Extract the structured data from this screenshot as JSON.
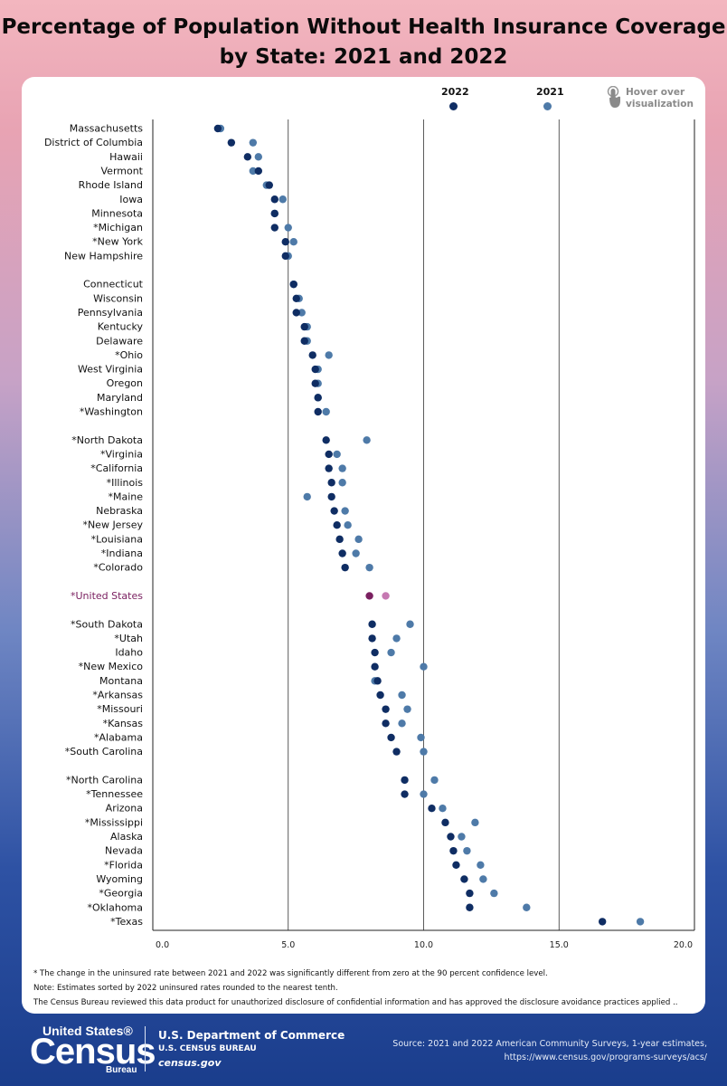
{
  "title_line1": "Percentage of Population Without Health Insurance Coverage",
  "title_line2": "by State: 2021 and 2022",
  "legend": {
    "label_2022": "2022",
    "label_2021": "2021",
    "color_2022": "#0f2d63",
    "color_2021": "#4e7aa8",
    "us_color_2022": "#7a2060",
    "us_color_2021": "#c679b2",
    "hover_line1": "Hover over",
    "hover_line2": "visualization",
    "hover_icon": "hand-pointer-icon"
  },
  "chart_data": {
    "type": "scatter",
    "title": "Percentage of Population Without Health Insurance Coverage by State: 2021 and 2022",
    "xlim": [
      0,
      20
    ],
    "xticks": [
      "0.0",
      "5.0",
      "10.0",
      "15.0",
      "20.0"
    ],
    "grid": "vertical lines at 5, 10, 15",
    "series": [
      {
        "name": "2022",
        "field": "v2022"
      },
      {
        "name": "2021",
        "field": "v2021"
      }
    ],
    "groups": [
      [
        {
          "label": "Massachusetts",
          "v2022": 2.4,
          "v2021": 2.5
        },
        {
          "label": "District of Columbia",
          "v2022": 2.9,
          "v2021": 3.7
        },
        {
          "label": "Hawaii",
          "v2022": 3.5,
          "v2021": 3.9
        },
        {
          "label": "Vermont",
          "v2022": 3.9,
          "v2021": 3.7
        },
        {
          "label": "Rhode Island",
          "v2022": 4.3,
          "v2021": 4.2
        },
        {
          "label": "Iowa",
          "v2022": 4.5,
          "v2021": 4.8
        },
        {
          "label": "Minnesota",
          "v2022": 4.5,
          "v2021": 4.5
        },
        {
          "label": "*Michigan",
          "v2022": 4.5,
          "v2021": 5.0
        },
        {
          "label": "*New York",
          "v2022": 4.9,
          "v2021": 5.2
        },
        {
          "label": "New Hampshire",
          "v2022": 4.9,
          "v2021": 5.0
        }
      ],
      [
        {
          "label": "Connecticut",
          "v2022": 5.2,
          "v2021": 5.2
        },
        {
          "label": "Wisconsin",
          "v2022": 5.3,
          "v2021": 5.4
        },
        {
          "label": "Pennsylvania",
          "v2022": 5.3,
          "v2021": 5.5
        },
        {
          "label": "Kentucky",
          "v2022": 5.6,
          "v2021": 5.7
        },
        {
          "label": "Delaware",
          "v2022": 5.6,
          "v2021": 5.7
        },
        {
          "label": "*Ohio",
          "v2022": 5.9,
          "v2021": 6.5
        },
        {
          "label": "West Virginia",
          "v2022": 6.0,
          "v2021": 6.1
        },
        {
          "label": "Oregon",
          "v2022": 6.0,
          "v2021": 6.1
        },
        {
          "label": "Maryland",
          "v2022": 6.1,
          "v2021": 6.1
        },
        {
          "label": "*Washington",
          "v2022": 6.1,
          "v2021": 6.4
        }
      ],
      [
        {
          "label": "*North Dakota",
          "v2022": 6.4,
          "v2021": 7.9
        },
        {
          "label": "*Virginia",
          "v2022": 6.5,
          "v2021": 6.8
        },
        {
          "label": "*California",
          "v2022": 6.5,
          "v2021": 7.0
        },
        {
          "label": "*Illinois",
          "v2022": 6.6,
          "v2021": 7.0
        },
        {
          "label": "*Maine",
          "v2022": 6.6,
          "v2021": 5.7
        },
        {
          "label": "Nebraska",
          "v2022": 6.7,
          "v2021": 7.1
        },
        {
          "label": "*New Jersey",
          "v2022": 6.8,
          "v2021": 7.2
        },
        {
          "label": "*Louisiana",
          "v2022": 6.9,
          "v2021": 7.6
        },
        {
          "label": "*Indiana",
          "v2022": 7.0,
          "v2021": 7.5
        },
        {
          "label": "*Colorado",
          "v2022": 7.1,
          "v2021": 8.0
        }
      ],
      [
        {
          "label": "*United States",
          "v2022": 8.0,
          "v2021": 8.6,
          "highlight": true
        }
      ],
      [
        {
          "label": "*South Dakota",
          "v2022": 8.1,
          "v2021": 9.5
        },
        {
          "label": "*Utah",
          "v2022": 8.1,
          "v2021": 9.0
        },
        {
          "label": "Idaho",
          "v2022": 8.2,
          "v2021": 8.8
        },
        {
          "label": "*New Mexico",
          "v2022": 8.2,
          "v2021": 10.0
        },
        {
          "label": "Montana",
          "v2022": 8.3,
          "v2021": 8.2
        },
        {
          "label": "*Arkansas",
          "v2022": 8.4,
          "v2021": 9.2
        },
        {
          "label": "*Missouri",
          "v2022": 8.6,
          "v2021": 9.4
        },
        {
          "label": "*Kansas",
          "v2022": 8.6,
          "v2021": 9.2
        },
        {
          "label": "*Alabama",
          "v2022": 8.8,
          "v2021": 9.9
        },
        {
          "label": "*South Carolina",
          "v2022": 9.0,
          "v2021": 10.0
        }
      ],
      [
        {
          "label": "*North Carolina",
          "v2022": 9.3,
          "v2021": 10.4
        },
        {
          "label": "*Tennessee",
          "v2022": 9.3,
          "v2021": 10.0
        },
        {
          "label": "Arizona",
          "v2022": 10.3,
          "v2021": 10.7
        },
        {
          "label": "*Mississippi",
          "v2022": 10.8,
          "v2021": 11.9
        },
        {
          "label": "Alaska",
          "v2022": 11.0,
          "v2021": 11.4
        },
        {
          "label": "Nevada",
          "v2022": 11.1,
          "v2021": 11.6
        },
        {
          "label": "*Florida",
          "v2022": 11.2,
          "v2021": 12.1
        },
        {
          "label": "Wyoming",
          "v2022": 11.5,
          "v2021": 12.2
        },
        {
          "label": "*Georgia",
          "v2022": 11.7,
          "v2021": 12.6
        },
        {
          "label": "*Oklahoma",
          "v2022": 11.7,
          "v2021": 13.8
        },
        {
          "label": "*Texas",
          "v2022": 16.6,
          "v2021": 18.0
        }
      ]
    ]
  },
  "footnotes": {
    "line1": "* The change in the uninsured rate between 2021 and 2022 was significantly different from zero at the 90 percent confidence level.",
    "line2": "Note: Estimates sorted by 2022 uninsured rates rounded to the nearest tenth.",
    "line3": "The Census Bureau reviewed this data product for unauthorized disclosure of confidential information and has approved the disclosure avoidance practices applied .."
  },
  "footer": {
    "logo_united": "United States®",
    "logo_census": "Census",
    "logo_bureau": "Bureau",
    "dept_line1": "U.S. Department of Commerce",
    "dept_line2": "U.S. CENSUS BUREAU",
    "dept_line3": "census.gov",
    "source_line1": "Source: 2021 and 2022 American Community Surveys, 1-year estimates,",
    "source_line2": "https://www.census.gov/programs-surveys/acs/"
  }
}
